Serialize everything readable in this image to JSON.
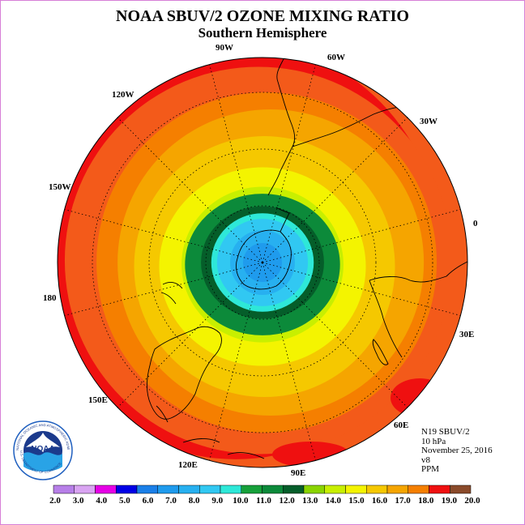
{
  "title": "NOAA SBUV/2 OZONE MIXING RATIO",
  "subtitle": "Southern Hemisphere",
  "longitude_labels": {
    "lon_90w": "90W",
    "lon_60w": "60W",
    "lon_120w": "120W",
    "lon_30w": "30W",
    "lon_150w": "150W",
    "lon_0": "0",
    "lon_180": "180",
    "lon_30e": "30E",
    "lon_150e": "150E",
    "lon_60e": "60E",
    "lon_120e": "120E",
    "lon_90e": "90E"
  },
  "info": {
    "satellite": "N19 SBUV/2",
    "level": "10 hPa",
    "date": "November 25, 2016",
    "version": "v8",
    "units": "PPM"
  },
  "logo": {
    "text": "NOAA",
    "ring_text": "NATIONAL OCEANIC AND ATMOSPHERIC ADMINISTRATION",
    "ring_text_bottom": "U.S. DEPARTMENT OF COMMERCE"
  },
  "colorbar": {
    "ticks": [
      "2.0",
      "3.0",
      "4.0",
      "5.0",
      "6.0",
      "7.0",
      "8.0",
      "9.0",
      "10.0",
      "11.0",
      "12.0",
      "13.0",
      "14.0",
      "15.0",
      "16.0",
      "17.0",
      "18.0",
      "19.0",
      "20.0"
    ],
    "colors": [
      "#b77fe8",
      "#d9a4f2",
      "#e600e6",
      "#0000e6",
      "#1a7fe8",
      "#1f9bed",
      "#27b0f0",
      "#31c8f2",
      "#2ee8d8",
      "#16a03a",
      "#0c8a3a",
      "#055e2a",
      "#8ad400",
      "#c8ef00",
      "#f4f400",
      "#f5c800",
      "#f5a500",
      "#f57f00",
      "#ef1010",
      "#8a4a2a"
    ]
  },
  "map_colors": {
    "c_0_95": "#ef1010",
    "c_0_92": "#f35a1a",
    "c_0_9": "#f57f00",
    "c_0_86": "#f5a500",
    "c_0_8": "#f5c800",
    "c_0_7": "#f4f400",
    "c_0_6": "#c8ef00",
    "c_0_52": "#8ad400",
    "c_0_45": "#0c8a3a",
    "c_0_38": "#055e2a",
    "c_0_33": "#2ee8d8",
    "c_0_28": "#31c8f2",
    "c_0_2": "#27b0f0",
    "c_0_12": "#1f9bed"
  }
}
